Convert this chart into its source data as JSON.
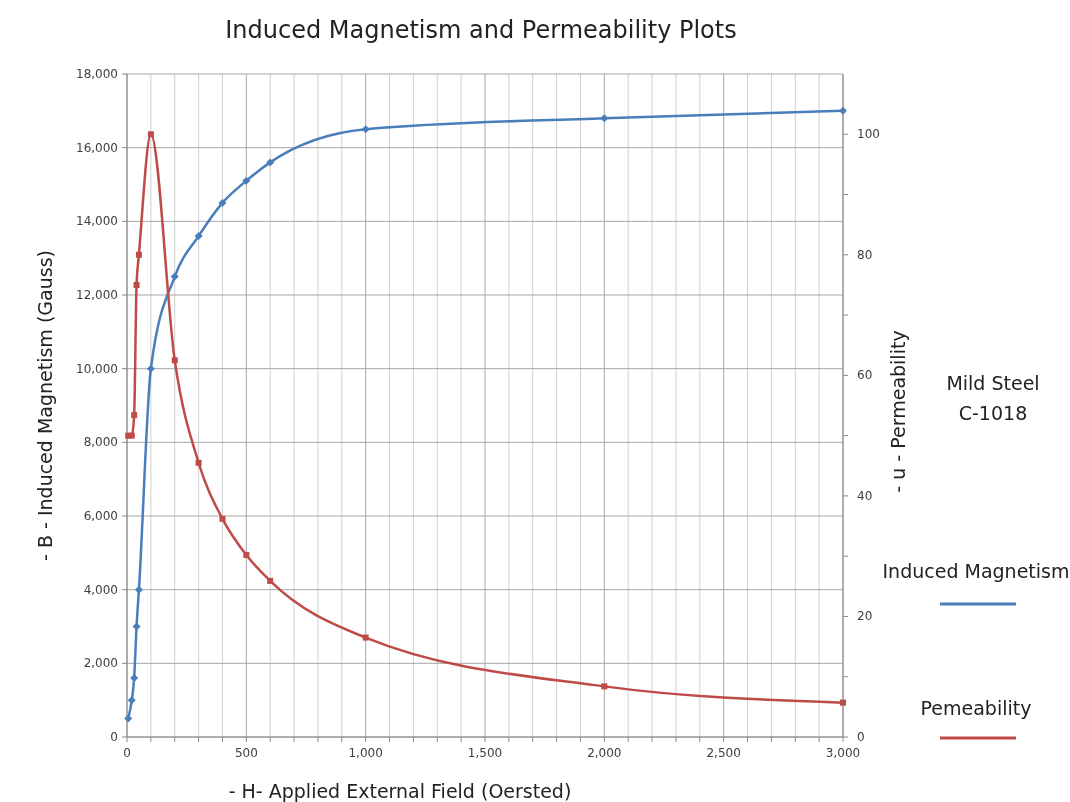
{
  "chart_data": {
    "type": "line",
    "title": "Induced Magnetism and Permeability Plots",
    "xlabel": "- H- Applied External Field (Oersted)",
    "ylabel": "- B - Induced Magnetism  (Gauss)",
    "y2label": "- u - Permeability",
    "annotations": [
      "Mild Steel\nC-1018"
    ],
    "series": [
      {
        "name": "Induced Magnetism",
        "color": "#4a7ebb",
        "marker": "diamond",
        "x": [
          5,
          20,
          30,
          40,
          50,
          100,
          200,
          300,
          400,
          500,
          600,
          1000,
          2000,
          3000
        ],
        "values": [
          500,
          1000,
          1600,
          3000,
          4000,
          10000,
          12500,
          13600,
          14500,
          15100,
          15600,
          16500,
          16800,
          17000
        ]
      },
      {
        "name": "Pemeability",
        "color": "#be4b48",
        "marker": "square",
        "axis": "y2",
        "x": [
          5,
          20,
          30,
          40,
          50,
          100,
          200,
          300,
          400,
          500,
          600,
          1000,
          2000,
          3000
        ],
        "values": [
          50,
          50,
          53.4,
          75,
          80,
          100,
          62.5,
          45.5,
          36.2,
          30.2,
          25.9,
          16.5,
          8.4,
          5.7
        ]
      }
    ],
    "xlim": [
      0,
      3000
    ],
    "ylim": [
      0,
      18000
    ],
    "y2lim": [
      0,
      110
    ],
    "xticks": [
      0,
      {
        "value": 100,
        "label": null
      },
      {
        "value": 200,
        "label": null
      },
      {
        "value": 300,
        "label": null
      },
      {
        "value": 400,
        "label": null
      },
      {
        "value": 500,
        "label": "500"
      },
      {
        "value": 600,
        "label": null
      },
      {
        "value": 700,
        "label": null
      },
      {
        "value": 800,
        "label": null
      },
      {
        "value": 900,
        "label": null
      },
      {
        "value": 1000,
        "label": "1,000"
      },
      {
        "value": 1100,
        "label": null
      },
      {
        "value": 1200,
        "label": null
      },
      {
        "value": 1300,
        "label": null
      },
      {
        "value": 1400,
        "label": null
      },
      {
        "value": 1500,
        "label": "1,500"
      },
      {
        "value": 1600,
        "label": null
      },
      {
        "value": 1700,
        "label": null
      },
      {
        "value": 1800,
        "label": null
      },
      {
        "value": 1900,
        "label": null
      },
      {
        "value": 2000,
        "label": "2,000"
      },
      {
        "value": 2100,
        "label": null
      },
      {
        "value": 2200,
        "label": null
      },
      {
        "value": 2300,
        "label": null
      },
      {
        "value": 2400,
        "label": null
      },
      {
        "value": 2500,
        "label": "2,500"
      },
      {
        "value": 2600,
        "label": null
      },
      {
        "value": 2700,
        "label": null
      },
      {
        "value": 2800,
        "label": null
      },
      {
        "value": 2900,
        "label": null
      },
      {
        "value": 3000,
        "label": "3,000"
      }
    ],
    "yticks": [
      0,
      {
        "value": 2000,
        "label": "2,000"
      },
      {
        "value": 4000,
        "label": "4,000"
      },
      {
        "value": 6000,
        "label": "6,000"
      },
      {
        "value": 8000,
        "label": "8,000"
      },
      {
        "value": 10000,
        "label": "10,000"
      },
      {
        "value": 12000,
        "label": "12,000"
      },
      {
        "value": 14000,
        "label": "14,000"
      },
      {
        "value": 16000,
        "label": "16,000"
      },
      {
        "value": 18000,
        "label": "18,000"
      }
    ],
    "y2ticks": [
      0,
      {
        "value": 10,
        "label": null
      },
      20,
      {
        "value": 30,
        "label": null
      },
      40,
      {
        "value": 50,
        "label": null
      },
      60,
      {
        "value": 70,
        "label": null
      },
      80,
      {
        "value": 90,
        "label": null
      },
      100
    ],
    "grid": true,
    "legend": "right",
    "line_style": "solid"
  }
}
